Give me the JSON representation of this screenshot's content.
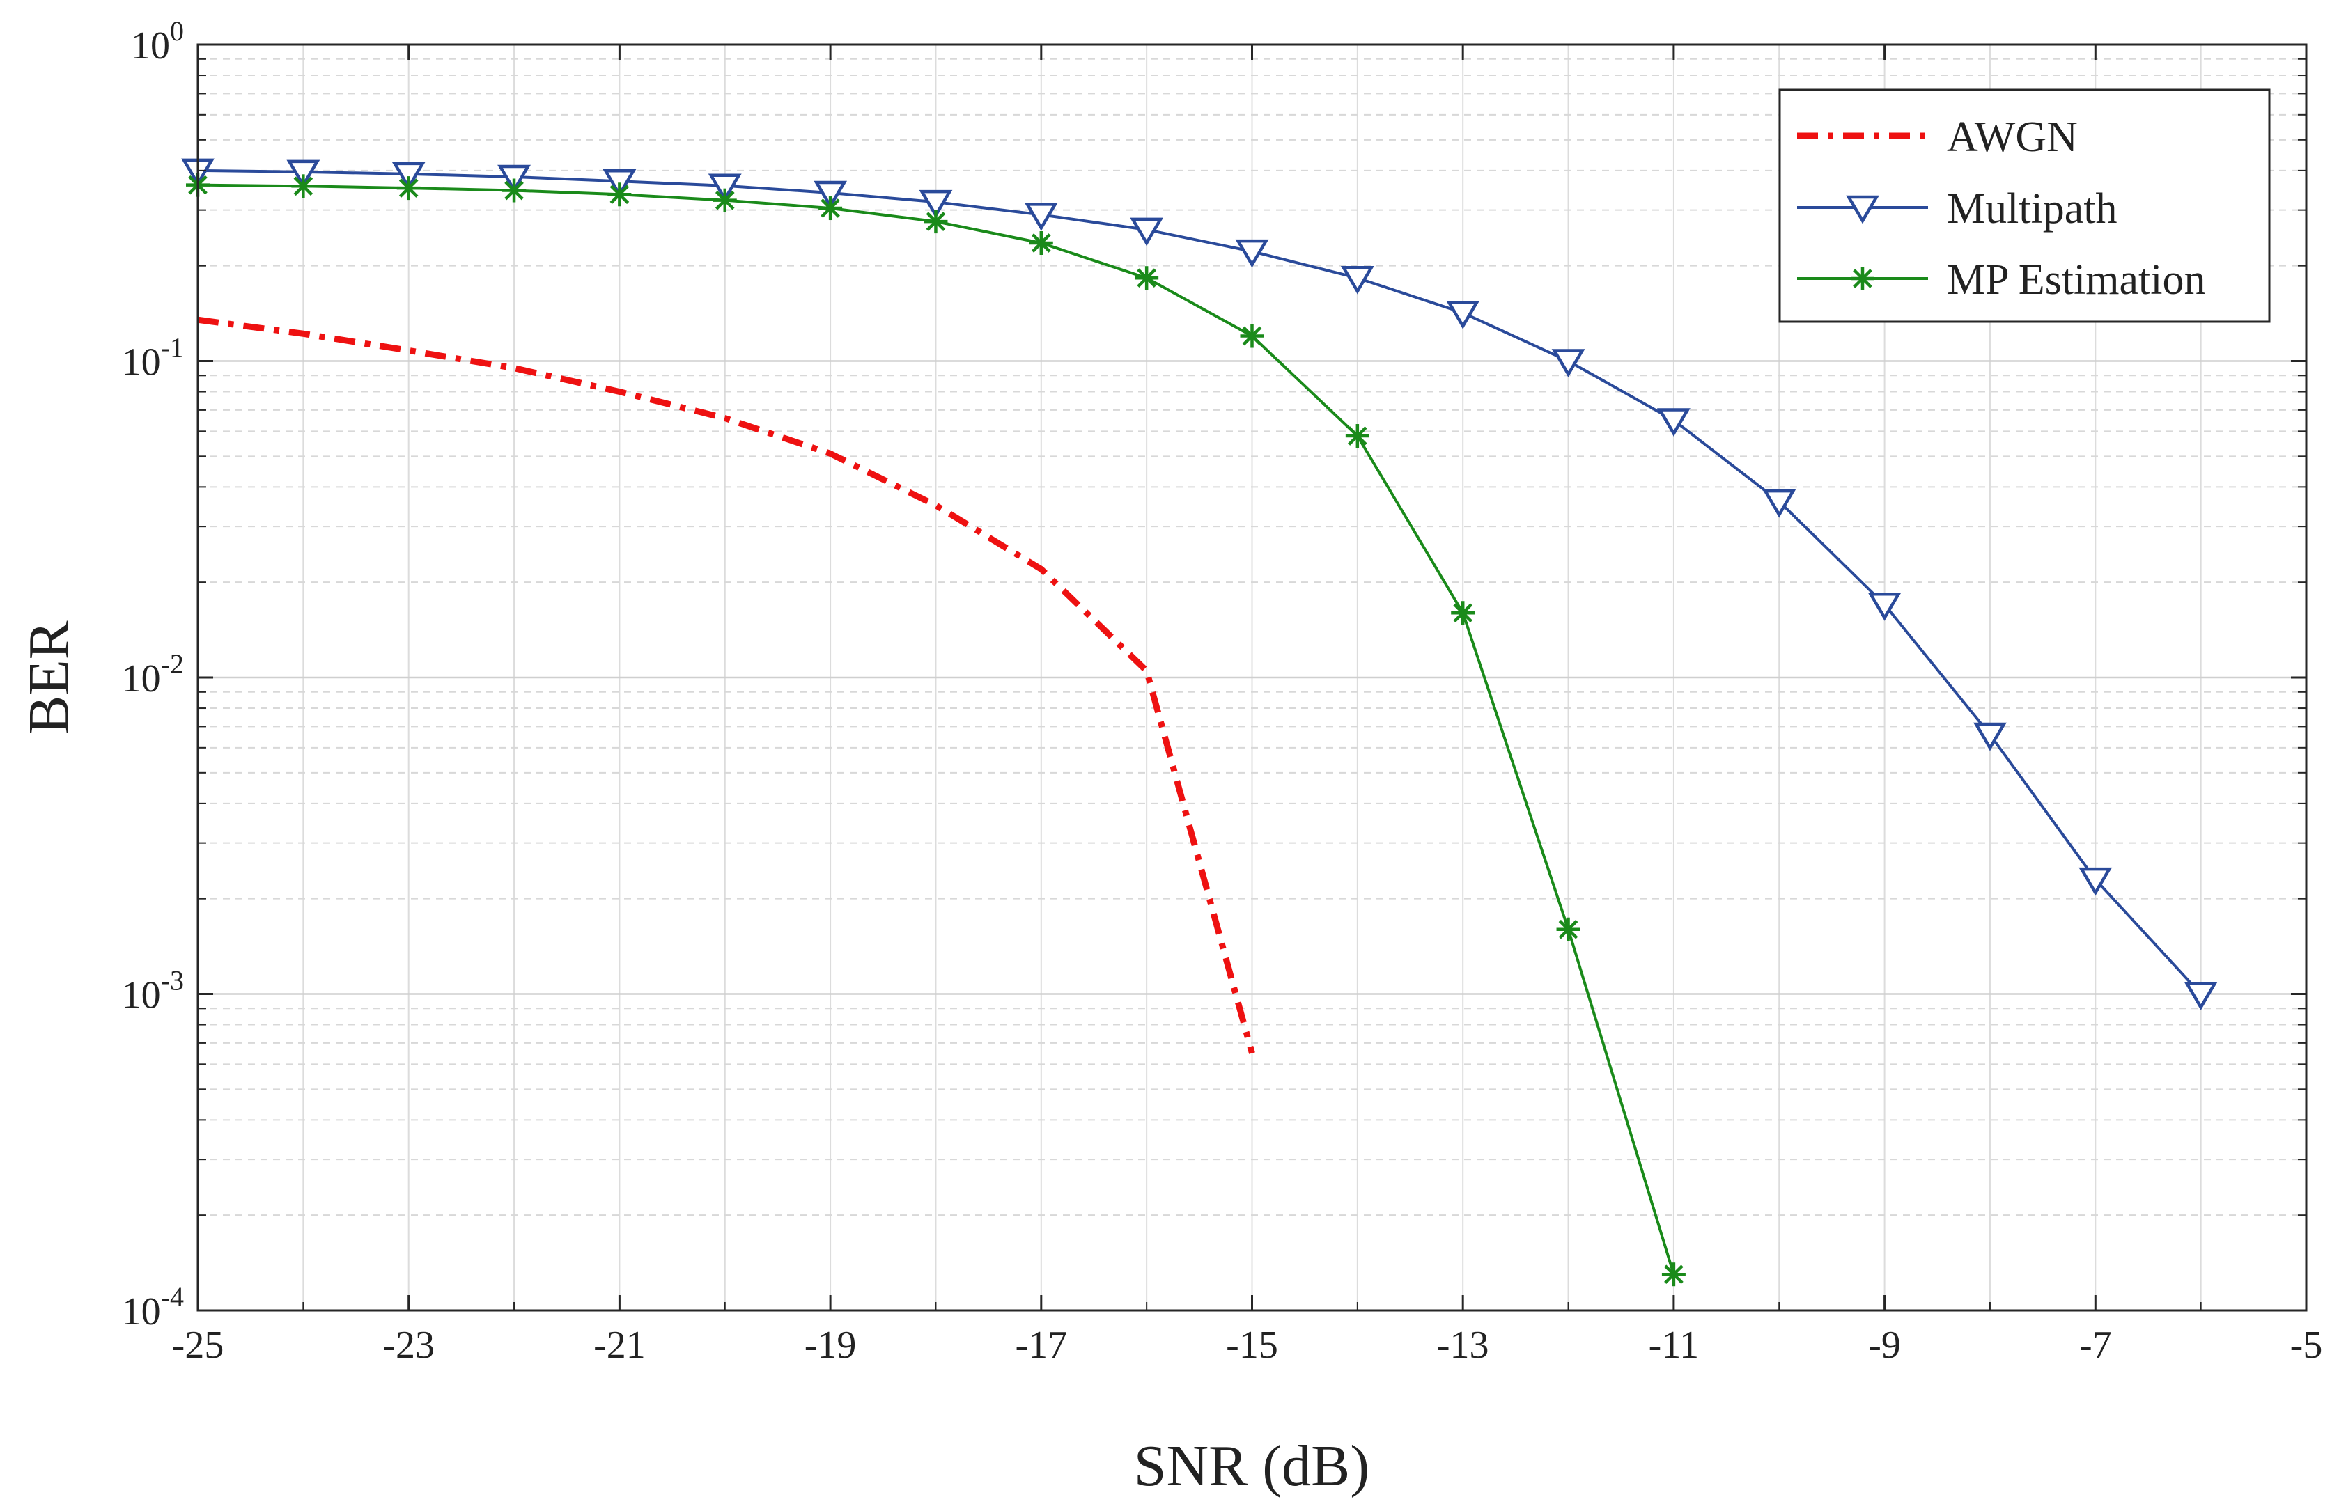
{
  "chart_data": {
    "type": "line",
    "title": "",
    "xlabel": "SNR (dB)",
    "ylabel": "BER",
    "xlim": [
      -25,
      -5
    ],
    "ylim": [
      0.0001,
      1
    ],
    "y_scale": "log",
    "grid": true,
    "minor_grid": true,
    "legend_position": "top-right",
    "x_ticks": [
      -25,
      -23,
      -21,
      -19,
      -17,
      -15,
      -13,
      -11,
      -9,
      -7,
      -5
    ],
    "x_tick_labels": [
      "-25",
      "-23",
      "-21",
      "-19",
      "-17",
      "-15",
      "-13",
      "-11",
      "-9",
      "-7",
      "-5"
    ],
    "y_ticks": [
      {
        "value": 1,
        "base": "10",
        "exp": "0"
      },
      {
        "value": 0.1,
        "base": "10",
        "exp": "-1"
      },
      {
        "value": 0.01,
        "base": "10",
        "exp": "-2"
      },
      {
        "value": 0.001,
        "base": "10",
        "exp": "-3"
      },
      {
        "value": 0.0001,
        "base": "10",
        "exp": "-4"
      }
    ],
    "series": [
      {
        "name": "AWGN",
        "color": "#ee1111",
        "line_style": "dash-dot",
        "marker": "none",
        "x": [
          -25,
          -24,
          -23,
          -22,
          -21,
          -20,
          -19,
          -18,
          -17,
          -16,
          -15
        ],
        "y": [
          0.135,
          0.122,
          0.108,
          0.095,
          0.08,
          0.066,
          0.051,
          0.035,
          0.022,
          0.0105,
          0.00065
        ]
      },
      {
        "name": "Multipath",
        "color": "#2a4a9a",
        "line_style": "solid",
        "marker": "triangle-down",
        "x": [
          -25,
          -24,
          -23,
          -22,
          -21,
          -20,
          -19,
          -18,
          -17,
          -16,
          -15,
          -14,
          -13,
          -12,
          -11,
          -10,
          -9,
          -8,
          -7,
          -6
        ],
        "y": [
          0.4,
          0.396,
          0.39,
          0.382,
          0.37,
          0.358,
          0.34,
          0.318,
          0.29,
          0.26,
          0.222,
          0.183,
          0.142,
          0.1,
          0.065,
          0.036,
          0.017,
          0.0066,
          0.0023,
          0.001
        ]
      },
      {
        "name": "MP Estimation",
        "color": "#1a8a1a",
        "line_style": "solid",
        "marker": "asterisk",
        "x": [
          -25,
          -24,
          -23,
          -22,
          -21,
          -20,
          -19,
          -18,
          -17,
          -16,
          -15,
          -14,
          -13,
          -12,
          -11
        ],
        "y": [
          0.36,
          0.357,
          0.352,
          0.346,
          0.336,
          0.322,
          0.304,
          0.276,
          0.236,
          0.183,
          0.12,
          0.058,
          0.016,
          0.0016,
          0.00013
        ]
      }
    ]
  }
}
